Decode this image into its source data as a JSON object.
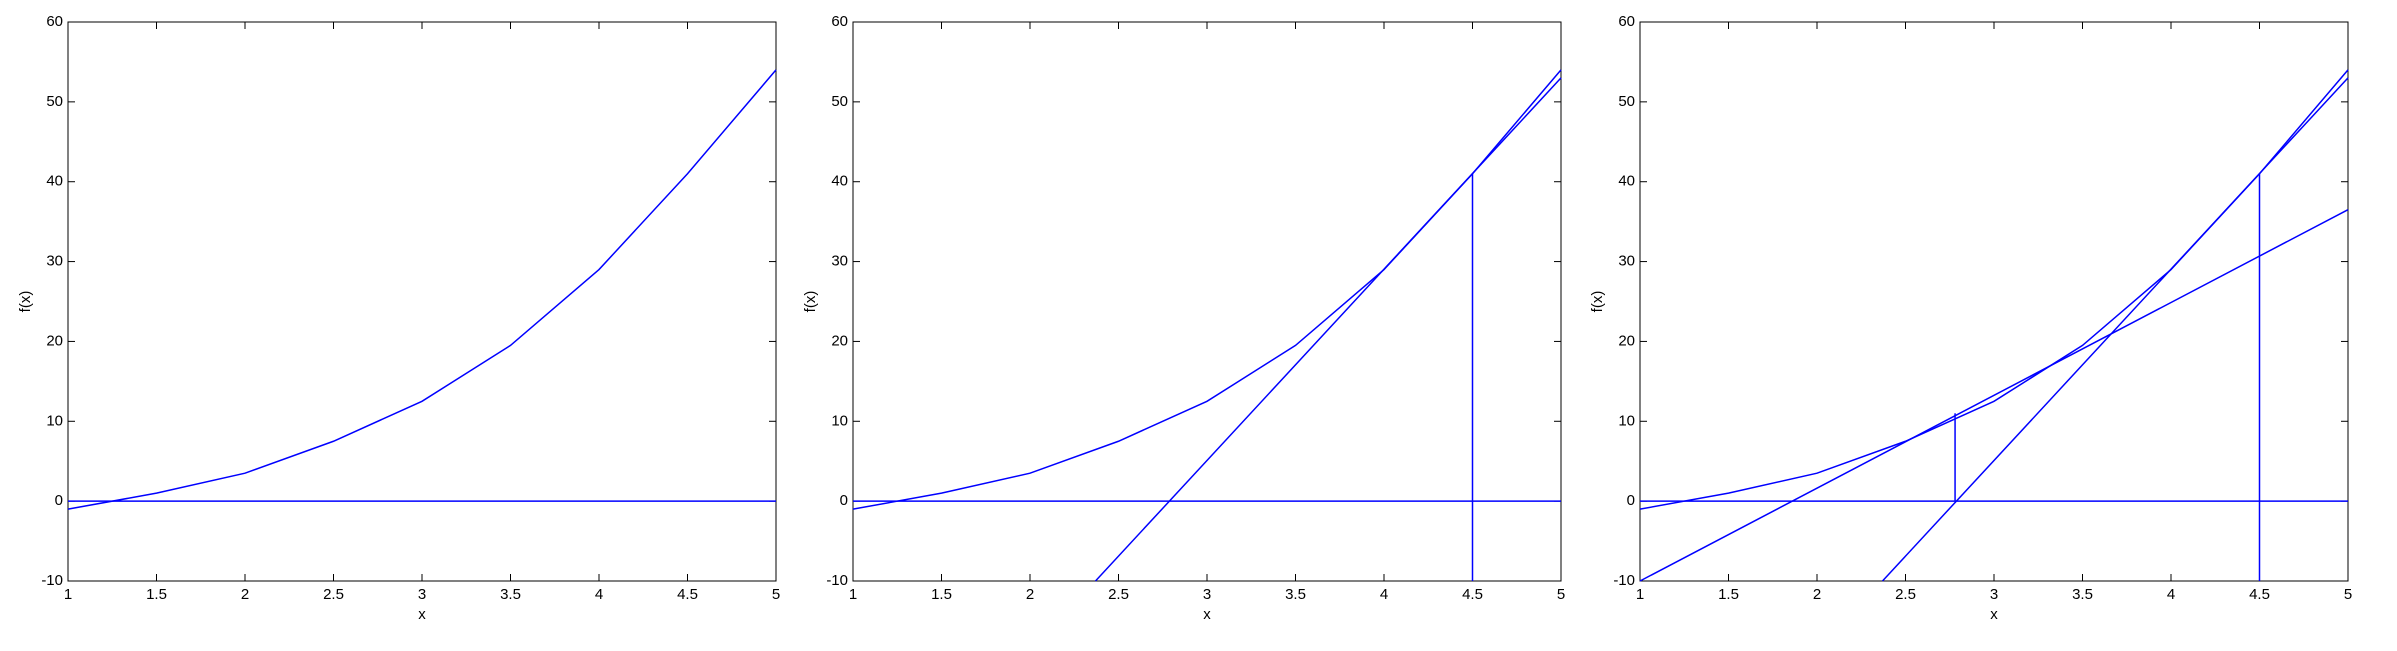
{
  "chart_data": [
    {
      "type": "line",
      "xlabel": "x",
      "ylabel": "f(x)",
      "xlim": [
        1,
        5
      ],
      "ylim": [
        -10,
        60
      ],
      "xticks": [
        1,
        1.5,
        2,
        2.5,
        3,
        3.5,
        4,
        4.5,
        5
      ],
      "yticks": [
        -10,
        0,
        10,
        20,
        30,
        40,
        50,
        60
      ],
      "series": [
        {
          "color": "#0000ff",
          "x": [
            1,
            1.5,
            2,
            2.5,
            3,
            3.5,
            4,
            4.5,
            5
          ],
          "values": [
            -1,
            1,
            3.5,
            7.5,
            12.5,
            19.5,
            29,
            41,
            54
          ]
        },
        {
          "color": "#0000ff",
          "x": [
            1,
            5
          ],
          "values": [
            0,
            0
          ]
        }
      ]
    },
    {
      "type": "line",
      "xlabel": "x",
      "ylabel": "f(x)",
      "xlim": [
        1,
        5
      ],
      "ylim": [
        -10,
        60
      ],
      "xticks": [
        1,
        1.5,
        2,
        2.5,
        3,
        3.5,
        4,
        4.5,
        5
      ],
      "yticks": [
        -10,
        0,
        10,
        20,
        30,
        40,
        50,
        60
      ],
      "series": [
        {
          "color": "#0000ff",
          "x": [
            1,
            1.5,
            2,
            2.5,
            3,
            3.5,
            4,
            4.5,
            5
          ],
          "values": [
            -1,
            1,
            3.5,
            7.5,
            12.5,
            19.5,
            29,
            41,
            54
          ]
        },
        {
          "color": "#0000ff",
          "x": [
            1,
            5
          ],
          "values": [
            0,
            0
          ]
        },
        {
          "color": "#0000ff",
          "x": [
            2.37,
            5
          ],
          "values": [
            -10,
            53
          ]
        },
        {
          "color": "#0000ff",
          "x": [
            4.5,
            4.5
          ],
          "values": [
            41,
            -10
          ]
        }
      ]
    },
    {
      "type": "line",
      "xlabel": "x",
      "ylabel": "f(x)",
      "xlim": [
        1,
        5
      ],
      "ylim": [
        -10,
        60
      ],
      "xticks": [
        1,
        1.5,
        2,
        2.5,
        3,
        3.5,
        4,
        4.5,
        5
      ],
      "yticks": [
        -10,
        0,
        10,
        20,
        30,
        40,
        50,
        60
      ],
      "series": [
        {
          "color": "#0000ff",
          "x": [
            1,
            1.5,
            2,
            2.5,
            3,
            3.5,
            4,
            4.5,
            5
          ],
          "values": [
            -1,
            1,
            3.5,
            7.5,
            12.5,
            19.5,
            29,
            41,
            54
          ]
        },
        {
          "color": "#0000ff",
          "x": [
            1,
            5
          ],
          "values": [
            0,
            0
          ]
        },
        {
          "color": "#0000ff",
          "x": [
            2.37,
            5
          ],
          "values": [
            -10,
            53
          ]
        },
        {
          "color": "#0000ff",
          "x": [
            4.5,
            4.5
          ],
          "values": [
            41,
            -10
          ]
        },
        {
          "color": "#0000ff",
          "x": [
            1,
            5
          ],
          "values": [
            -10,
            36.5
          ]
        },
        {
          "color": "#0000ff",
          "x": [
            2.78,
            2.78
          ],
          "values": [
            11,
            0
          ]
        }
      ]
    }
  ]
}
